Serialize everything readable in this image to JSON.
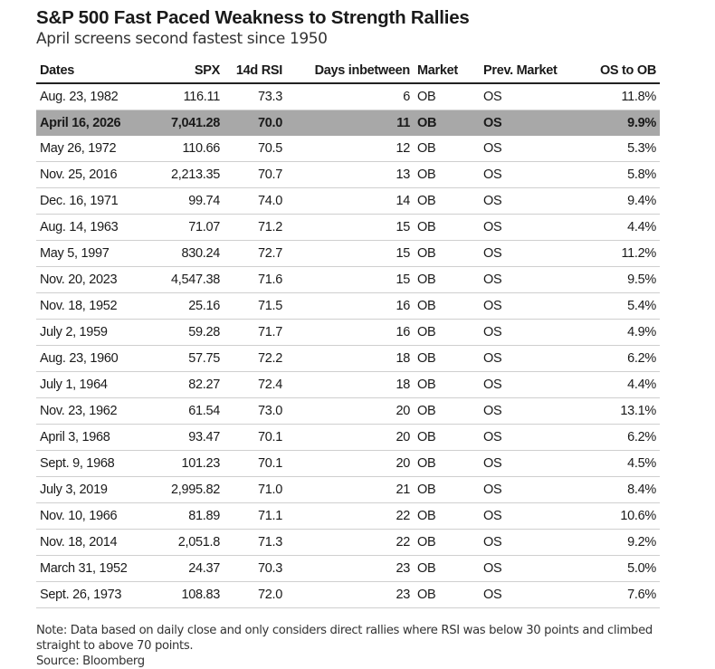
{
  "title": "S&P 500 Fast Paced Weakness to Strength Rallies",
  "subtitle": "April screens second fastest since 1950",
  "note": "Note: Data based on daily close and only considers direct rallies where RSI was below 30 points and climbed straight to above 70 points.",
  "source": "Source: Bloomberg",
  "highlight_color": "#a8a8a8",
  "chart_data": {
    "type": "table",
    "columns": [
      "Dates",
      "SPX",
      "14d RSI",
      "Days inbetween",
      "Market",
      "Prev. Market",
      "OS to OB"
    ],
    "highlighted_row": 1,
    "rows": [
      [
        "Aug. 23, 1982",
        "116.11",
        "73.3",
        "6",
        "OB",
        "OS",
        "11.8%"
      ],
      [
        "April 16, 2026",
        "7,041.28",
        "70.0",
        "11",
        "OB",
        "OS",
        "9.9%"
      ],
      [
        "May 26, 1972",
        "110.66",
        "70.5",
        "12",
        "OB",
        "OS",
        "5.3%"
      ],
      [
        "Nov. 25, 2016",
        "2,213.35",
        "70.7",
        "13",
        "OB",
        "OS",
        "5.8%"
      ],
      [
        "Dec. 16, 1971",
        "99.74",
        "74.0",
        "14",
        "OB",
        "OS",
        "9.4%"
      ],
      [
        "Aug. 14, 1963",
        "71.07",
        "71.2",
        "15",
        "OB",
        "OS",
        "4.4%"
      ],
      [
        "May 5, 1997",
        "830.24",
        "72.7",
        "15",
        "OB",
        "OS",
        "11.2%"
      ],
      [
        "Nov. 20, 2023",
        "4,547.38",
        "71.6",
        "15",
        "OB",
        "OS",
        "9.5%"
      ],
      [
        "Nov. 18, 1952",
        "25.16",
        "71.5",
        "16",
        "OB",
        "OS",
        "5.4%"
      ],
      [
        "July 2, 1959",
        "59.28",
        "71.7",
        "16",
        "OB",
        "OS",
        "4.9%"
      ],
      [
        "Aug. 23, 1960",
        "57.75",
        "72.2",
        "18",
        "OB",
        "OS",
        "6.2%"
      ],
      [
        "July 1, 1964",
        "82.27",
        "72.4",
        "18",
        "OB",
        "OS",
        "4.4%"
      ],
      [
        "Nov. 23, 1962",
        "61.54",
        "73.0",
        "20",
        "OB",
        "OS",
        "13.1%"
      ],
      [
        "April 3, 1968",
        "93.47",
        "70.1",
        "20",
        "OB",
        "OS",
        "6.2%"
      ],
      [
        "Sept. 9, 1968",
        "101.23",
        "70.1",
        "20",
        "OB",
        "OS",
        "4.5%"
      ],
      [
        "July 3, 2019",
        "2,995.82",
        "71.0",
        "21",
        "OB",
        "OS",
        "8.4%"
      ],
      [
        "Nov. 10, 1966",
        "81.89",
        "71.1",
        "22",
        "OB",
        "OS",
        "10.6%"
      ],
      [
        "Nov. 18, 2014",
        "2,051.8",
        "71.3",
        "22",
        "OB",
        "OS",
        "9.2%"
      ],
      [
        "March 31, 1952",
        "24.37",
        "70.3",
        "23",
        "OB",
        "OS",
        "5.0%"
      ],
      [
        "Sept. 26, 1973",
        "108.83",
        "72.0",
        "23",
        "OB",
        "OS",
        "7.6%"
      ]
    ]
  }
}
